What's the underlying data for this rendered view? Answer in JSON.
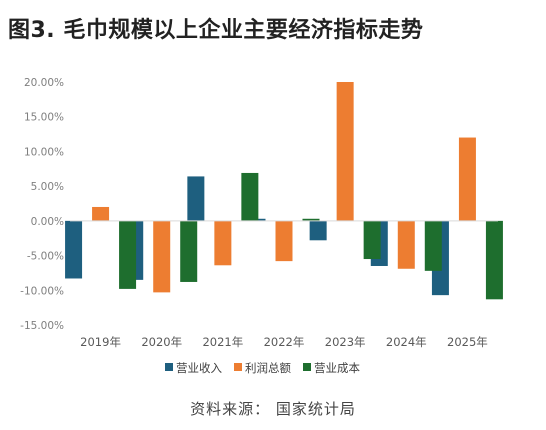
{
  "title": "图3. 毛巾规模以上企业主要经济指标走势",
  "source": "资料来源： 国家统计局",
  "chart_data": {
    "type": "bar",
    "categories": [
      "2019年",
      "2020年",
      "2021年",
      "2022年",
      "2023年",
      "2024年",
      "2025年"
    ],
    "series": [
      {
        "name": "营业收入",
        "color": "#1e5f7f",
        "values": [
          -8.3,
          -8.5,
          6.4,
          0.3,
          -2.8,
          -6.5,
          -10.7
        ]
      },
      {
        "name": "利润总额",
        "color": "#ed7d31",
        "values": [
          2.0,
          -10.3,
          -6.4,
          -5.8,
          20.0,
          -6.9,
          12.0
        ]
      },
      {
        "name": "营业成本",
        "color": "#1e6e2e",
        "values": [
          -9.8,
          -8.8,
          6.9,
          0.3,
          -5.5,
          -7.2,
          -11.3
        ]
      }
    ],
    "ylim": [
      -15,
      20
    ],
    "yticks": [
      "-15.00%",
      "-10.00%",
      "-5.00%",
      "0.00%",
      "5.00%",
      "10.00%",
      "15.00%",
      "20.00%"
    ],
    "ytick_values": [
      -15,
      -10,
      -5,
      0,
      5,
      10,
      15,
      20
    ],
    "grid": false,
    "legend": "bottom"
  }
}
